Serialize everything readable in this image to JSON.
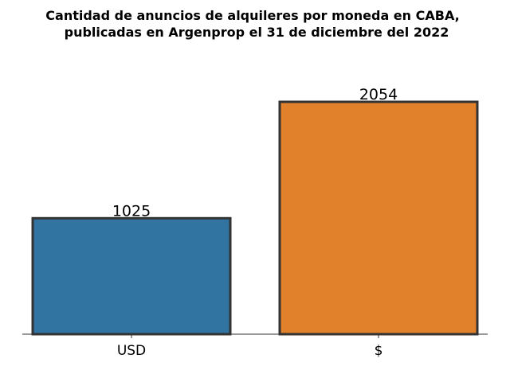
{
  "chart_data": {
    "type": "bar",
    "title_lines": [
      "Cantidad de anuncios de alquileres por moneda en CABA,",
      "publicadas en Argenprop el 31 de diciembre del 2022"
    ],
    "categories": [
      "USD",
      "$"
    ],
    "values": [
      1025,
      2054
    ],
    "colors": [
      "#3274a1",
      "#e1812c"
    ],
    "edge_color": "#333333",
    "xlabel": "",
    "ylabel": "",
    "ylim": [
      0,
      2054
    ],
    "grid": false,
    "legend": "none"
  }
}
